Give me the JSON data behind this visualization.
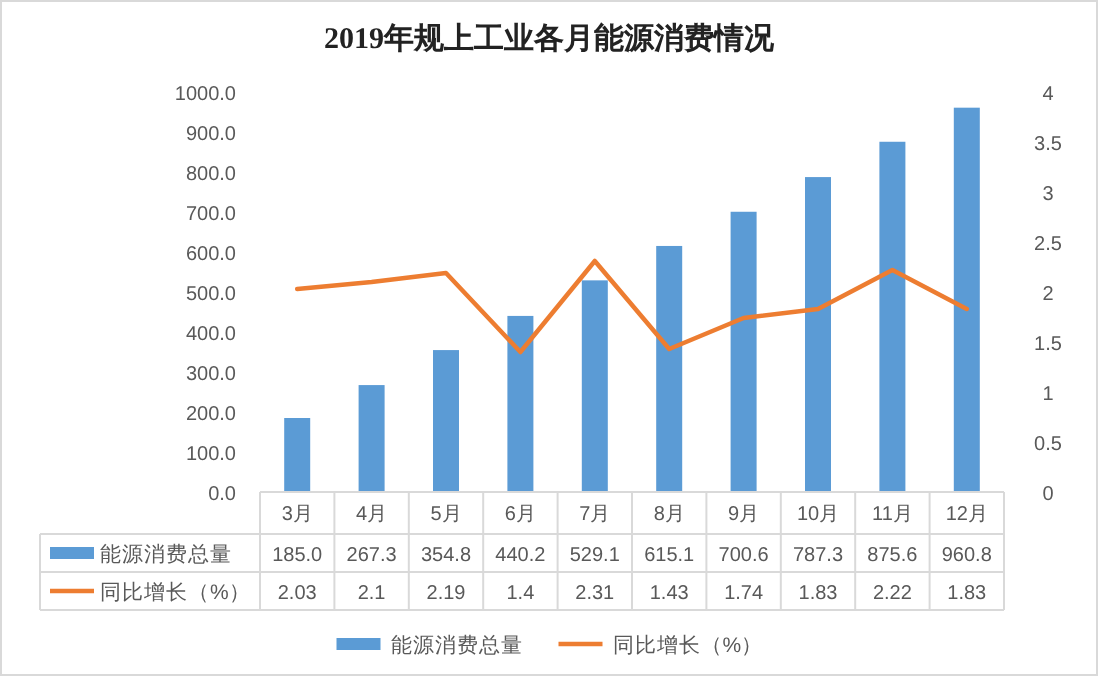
{
  "chart_data": {
    "type": "bar",
    "title": "2019年规上工业各月能源消费情况",
    "categories": [
      "3月",
      "4月",
      "5月",
      "6月",
      "7月",
      "8月",
      "9月",
      "10月",
      "11月",
      "12月"
    ],
    "series": [
      {
        "name": "能源消费总量",
        "color": "#5b9bd5",
        "values": [
          185.0,
          267.3,
          354.8,
          440.2,
          529.1,
          615.1,
          700.6,
          787.3,
          875.6,
          960.8
        ],
        "value_labels": [
          "185.0",
          "267.3",
          "354.8",
          "440.2",
          "529.1",
          "615.1",
          "700.6",
          "787.3",
          "875.6",
          "960.8"
        ]
      },
      {
        "name": "同比增长（%）",
        "type": "line",
        "axis": "y2",
        "color": "#ed7d31",
        "values": [
          2.03,
          2.1,
          2.19,
          1.4,
          2.31,
          1.43,
          1.74,
          1.83,
          2.22,
          1.83
        ],
        "value_labels": [
          "2.03",
          "2.1",
          "2.19",
          "1.4",
          "2.31",
          "1.43",
          "1.74",
          "1.83",
          "2.22",
          "1.83"
        ]
      }
    ],
    "ylim": [
      0,
      1000
    ],
    "yticks": [
      {
        "value": 0,
        "label": "0.0"
      },
      {
        "value": 100,
        "label": "100.0"
      },
      {
        "value": 200,
        "label": "200.0"
      },
      {
        "value": 300,
        "label": "300.0"
      },
      {
        "value": 400,
        "label": "400.0"
      },
      {
        "value": 500,
        "label": "500.0"
      },
      {
        "value": 600,
        "label": "600.0"
      },
      {
        "value": 700,
        "label": "700.0"
      },
      {
        "value": 800,
        "label": "800.0"
      },
      {
        "value": 900,
        "label": "900.0"
      },
      {
        "value": 1000,
        "label": "1000.0"
      }
    ],
    "y2lim": [
      0,
      4
    ],
    "y2ticks": [
      0,
      0.5,
      1,
      1.5,
      2,
      2.5,
      3,
      3.5,
      4
    ],
    "legend": "bottom"
  }
}
